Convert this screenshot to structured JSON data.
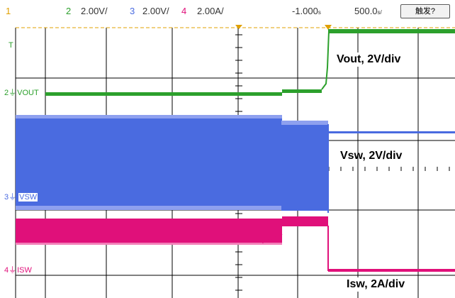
{
  "header": {
    "trigger_channel": "1",
    "ch2_num": "2",
    "ch2_scale": "2.00V/",
    "ch3_num": "3",
    "ch3_scale": "2.00V/",
    "ch4_num": "4",
    "ch4_scale": "2.00A/",
    "time_offset": "-1.000",
    "time_offset_unit": "s",
    "timebase": "500.0",
    "timebase_unit": "s/",
    "trigger_button": "触发?"
  },
  "channels": {
    "vout": {
      "num": "2",
      "label": "VOUT",
      "color": "#2ca02c"
    },
    "vsw": {
      "num": "3",
      "label": "VSW",
      "color": "#4a6be0"
    },
    "isw": {
      "num": "4",
      "label": "ISW",
      "color": "#e0107a"
    }
  },
  "trigger_marker": "T",
  "annotations": {
    "vout": "Vout, 2V/div",
    "vsw": "Vsw, 2V/div",
    "isw": "Isw, 2A/div"
  },
  "colors": {
    "trigger": "#e0a000",
    "grid": "#000000"
  }
}
